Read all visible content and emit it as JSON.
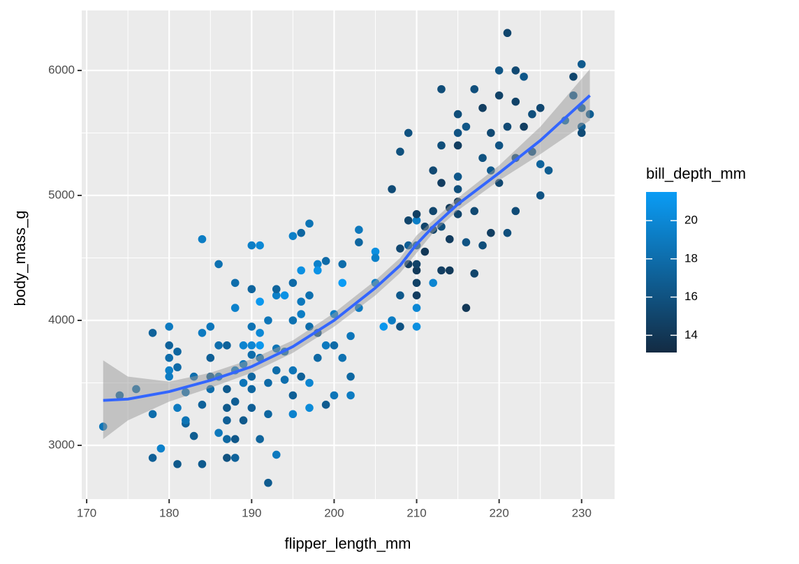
{
  "chart_data": {
    "type": "scatter",
    "xlabel": "flipper_length_mm",
    "ylabel": "body_mass_g",
    "xlim": [
      169.4,
      234
    ],
    "ylim": [
      2570,
      6480
    ],
    "xticks": [
      170,
      180,
      190,
      200,
      210,
      220,
      230
    ],
    "yticks": [
      3000,
      4000,
      5000,
      6000
    ],
    "grid": true,
    "x": [
      172,
      174,
      176,
      178,
      178,
      178,
      179,
      180,
      180,
      180,
      180,
      180,
      181,
      181,
      181,
      181,
      182,
      182,
      182,
      183,
      183,
      184,
      184,
      184,
      184,
      185,
      185,
      185,
      185,
      186,
      186,
      186,
      186,
      187,
      187,
      187,
      187,
      187,
      187,
      188,
      188,
      188,
      188,
      188,
      188,
      189,
      189,
      189,
      189,
      190,
      190,
      190,
      190,
      190,
      190,
      190,
      190,
      191,
      191,
      191,
      191,
      191,
      191,
      192,
      192,
      192,
      192,
      193,
      193,
      193,
      193,
      193,
      194,
      194,
      194,
      195,
      195,
      195,
      195,
      195,
      195,
      196,
      196,
      196,
      196,
      196,
      197,
      197,
      197,
      197,
      197,
      198,
      198,
      198,
      198,
      199,
      199,
      199,
      200,
      200,
      200,
      201,
      201,
      201,
      202,
      202,
      202,
      203,
      203,
      203,
      205,
      205,
      205,
      206,
      207,
      207,
      208,
      208,
      208,
      208,
      209,
      209,
      209,
      209,
      210,
      210,
      210,
      210,
      210,
      210,
      210,
      210,
      210,
      211,
      211,
      212,
      212,
      212,
      212,
      213,
      213,
      213,
      213,
      213,
      214,
      214,
      214,
      215,
      215,
      215,
      215,
      215,
      215,
      215,
      216,
      216,
      216,
      217,
      217,
      217,
      218,
      218,
      218,
      219,
      219,
      219,
      220,
      220,
      220,
      220,
      221,
      221,
      221,
      222,
      222,
      222,
      222,
      223,
      223,
      224,
      224,
      225,
      225,
      225,
      226,
      228,
      229,
      229,
      230,
      230,
      230,
      230,
      231
    ],
    "y": [
      3150,
      3400,
      3450,
      3250,
      2900,
      3900,
      2975,
      3950,
      3800,
      3700,
      3600,
      3550,
      2850,
      3300,
      3750,
      3625,
      3175,
      3200,
      3425,
      3550,
      3075,
      4650,
      3900,
      3325,
      2850,
      3700,
      3450,
      3550,
      3950,
      4450,
      3800,
      3100,
      3550,
      3300,
      3200,
      3450,
      3800,
      2900,
      3050,
      3050,
      2900,
      3350,
      3600,
      4300,
      4100,
      3500,
      3800,
      3200,
      3650,
      3950,
      3450,
      3800,
      4600,
      4250,
      3300,
      3725,
      3550,
      4600,
      3800,
      3050,
      3700,
      4150,
      3900,
      2700,
      3250,
      4000,
      3500,
      3775,
      4200,
      3600,
      2925,
      4250,
      3750,
      4200,
      3525,
      3250,
      3600,
      4675,
      4300,
      4000,
      3400,
      4700,
      4400,
      4150,
      3550,
      4050,
      4775,
      3300,
      3950,
      4200,
      3500,
      4450,
      4400,
      3700,
      3900,
      3325,
      3800,
      4475,
      3400,
      4050,
      3800,
      4300,
      4450,
      3700,
      3550,
      3400,
      3875,
      4725,
      4100,
      4625,
      4550,
      4500,
      4300,
      3950,
      5050,
      4000,
      5350,
      4575,
      4200,
      3950,
      5500,
      4800,
      4450,
      4600,
      4800,
      4400,
      4600,
      4200,
      4300,
      4100,
      3950,
      4850,
      4450,
      4750,
      4550,
      4300,
      5200,
      4875,
      4725,
      5850,
      5400,
      5100,
      4400,
      4750,
      4650,
      4400,
      4900,
      5650,
      5400,
      5500,
      5050,
      4850,
      5150,
      4950,
      5550,
      4100,
      4625,
      4375,
      5850,
      4875,
      5700,
      4600,
      5300,
      5200,
      5500,
      4700,
      5800,
      6000,
      5400,
      5100,
      6300,
      5550,
      4700,
      6000,
      5750,
      4875,
      5300,
      5950,
      5550,
      5650,
      5350,
      5700,
      5000,
      5250,
      5200,
      5600,
      5950,
      5800,
      6050,
      5700,
      5550,
      5500,
      5650
    ],
    "color_values": [
      18.6,
      17.5,
      17.9,
      18,
      17,
      17.2,
      19.5,
      19,
      17.2,
      18,
      19.4,
      19.1,
      16.5,
      19,
      17.5,
      17.8,
      17.1,
      18.5,
      18.3,
      18.1,
      16.8,
      19.2,
      19,
      17.2,
      16.6,
      17,
      18,
      16.8,
      18.7,
      18.3,
      18.1,
      18.8,
      18.5,
      16.5,
      17,
      16.6,
      17.2,
      16,
      17.6,
      16.4,
      17.2,
      16.9,
      19,
      18,
      19.5,
      18.6,
      19.7,
      16.5,
      18.8,
      18.4,
      17.5,
      19.9,
      19.3,
      17.4,
      17,
      18,
      17.5,
      20,
      21.1,
      17.3,
      18.2,
      21.2,
      20,
      16.7,
      17.5,
      18.6,
      17.8,
      18.5,
      19.4,
      17.9,
      18.9,
      17.3,
      18.1,
      20.7,
      18.1,
      19.6,
      18.6,
      19.4,
      17.8,
      18.3,
      17,
      17.5,
      20.6,
      18.8,
      17.1,
      19.2,
      18.5,
      20.2,
      18,
      18.2,
      19.8,
      19.5,
      20.8,
      17.7,
      16.2,
      16.7,
      18.9,
      17.8,
      18.6,
      19.3,
      17.8,
      21.5,
      18,
      18.3,
      17.6,
      19.1,
      18.7,
      18.8,
      19,
      17.5,
      20.5,
      19.4,
      19.4,
      21.1,
      15.5,
      19.2,
      15.9,
      15.2,
      16.5,
      16.1,
      16,
      15,
      14.5,
      17,
      19.3,
      14.2,
      17.1,
      14.4,
      14.8,
      20,
      20.5,
      14.6,
      14.8,
      15,
      14,
      19.8,
      15.3,
      15.1,
      14.9,
      15.6,
      15.7,
      14.4,
      14.5,
      15.8,
      14.4,
      14.2,
      14.2,
      15.7,
      14.5,
      16.1,
      15.8,
      15,
      16.4,
      14.3,
      16.3,
      14,
      16.1,
      15,
      15.8,
      15.3,
      14.5,
      15.7,
      16,
      16.6,
      15.3,
      14.5,
      14.8,
      16.2,
      16.1,
      15.2,
      15.1,
      15.4,
      15.8,
      15.3,
      14.8,
      15.5,
      15.6,
      16.4,
      14.5,
      15.8,
      16.2,
      15.2,
      16.1,
      17.3,
      16.8,
      17.9,
      15.1,
      16.7,
      16.6,
      17,
      16.8,
      15.5,
      16.8
    ],
    "colorbar": {
      "title": "bill_depth_mm",
      "lim": [
        13.1,
        21.5
      ],
      "ticks": [
        14,
        16,
        18,
        20
      ],
      "low": "#132B43",
      "high": "#0A9CF5"
    },
    "smooth": {
      "color": "#3366FF",
      "x": [
        172,
        175,
        180,
        185,
        190,
        195,
        200,
        205,
        208,
        210,
        212,
        215,
        220,
        225,
        231
      ],
      "y": [
        3360,
        3370,
        3430,
        3520,
        3630,
        3790,
        4000,
        4260,
        4440,
        4610,
        4750,
        4930,
        5180,
        5440,
        5800
      ],
      "lower": [
        3050,
        3200,
        3350,
        3460,
        3580,
        3740,
        3950,
        4200,
        4380,
        4540,
        4700,
        4880,
        5120,
        5330,
        5600
      ],
      "upper": [
        3680,
        3550,
        3510,
        3580,
        3690,
        3840,
        4060,
        4320,
        4500,
        4680,
        4800,
        4980,
        5240,
        5550,
        6010
      ]
    }
  }
}
